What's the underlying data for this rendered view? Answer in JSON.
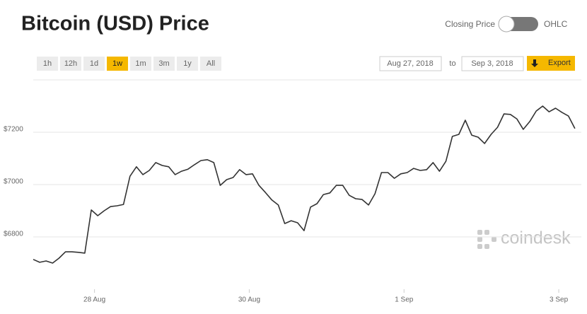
{
  "header": {
    "title": "Bitcoin (USD) Price",
    "toggle_left": "Closing Price",
    "toggle_right": "OHLC"
  },
  "controls": {
    "ranges": [
      "1h",
      "12h",
      "1d",
      "1w",
      "1m",
      "3m",
      "1y",
      "All"
    ],
    "active_range": 3,
    "date_from": "Aug 27, 2018",
    "to": "to",
    "date_to": "Sep 3, 2018",
    "export": "Export"
  },
  "watermark": "coindesk",
  "chart_data": {
    "type": "line",
    "color": "#333333",
    "grid": true,
    "x": [
      5,
      7,
      9,
      11,
      13,
      15,
      17,
      19,
      21,
      23,
      25,
      27,
      29,
      31,
      33,
      35,
      37,
      39,
      41,
      43,
      45,
      47,
      49,
      51,
      53,
      55,
      57,
      59,
      61,
      63,
      65,
      67,
      69,
      71,
      73,
      75,
      77,
      79,
      81,
      83,
      85,
      87,
      89,
      91,
      93,
      95,
      97,
      99,
      101,
      103,
      105,
      107,
      109,
      111,
      113,
      115,
      117,
      119,
      121,
      123,
      125,
      127,
      129,
      131,
      133,
      135,
      137,
      139,
      141,
      143,
      145,
      147,
      149,
      151,
      153,
      155,
      157,
      159,
      161,
      163,
      165,
      167,
      169,
      171,
      173
    ],
    "values": [
      6714,
      6703,
      6708,
      6700,
      6719,
      6743,
      6743,
      6741,
      6738,
      6903,
      6881,
      6900,
      6916,
      6919,
      6924,
      7032,
      7068,
      7038,
      7054,
      7084,
      7073,
      7068,
      7038,
      7051,
      7059,
      7076,
      7092,
      7095,
      7084,
      6997,
      7019,
      7027,
      7057,
      7038,
      7041,
      6997,
      6970,
      6941,
      6922,
      6851,
      6862,
      6854,
      6824,
      6914,
      6927,
      6962,
      6968,
      6997,
      6997,
      6959,
      6946,
      6943,
      6922,
      6965,
      7046,
      7046,
      7024,
      7041,
      7046,
      7062,
      7054,
      7057,
      7084,
      7051,
      7089,
      7184,
      7192,
      7246,
      7189,
      7181,
      7157,
      7192,
      7219,
      7270,
      7268,
      7251,
      7211,
      7241,
      7281,
      7300,
      7278,
      7292,
      7276,
      7262,
      7214
    ],
    "xlim": [
      5,
      175
    ],
    "xticks": [
      {
        "value": 24,
        "label": "28 Aug"
      },
      {
        "value": 72,
        "label": "30 Aug"
      },
      {
        "value": 120,
        "label": "1 Sep"
      },
      {
        "value": 168,
        "label": "3 Sep"
      }
    ],
    "ylim": [
      6600,
      7400
    ],
    "yticks": [
      {
        "value": 6800,
        "label": "$6800"
      },
      {
        "value": 7000,
        "label": "$7000"
      },
      {
        "value": 7200,
        "label": "$7200"
      }
    ]
  }
}
